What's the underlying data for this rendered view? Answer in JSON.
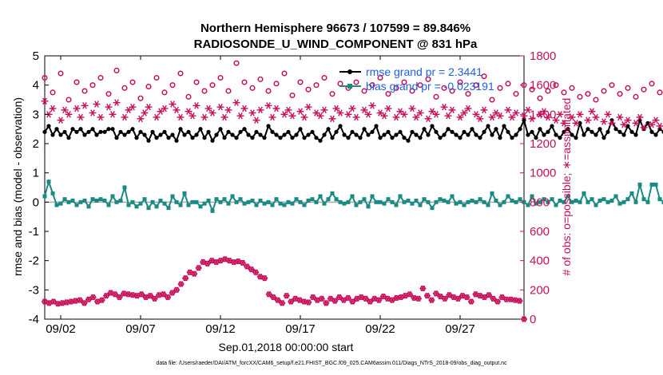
{
  "chart_data": {
    "type": "line",
    "title_line1": "Northern Hemisphere 96673 / 107599 = 89.846%",
    "title_line2": "RADIOSONDE_U_WIND_COMPONENT @ 831 hPa",
    "xlabel": "Sep.01,2018 00:00:00 start",
    "ylabel_left": "rmse and bias (model - observation)",
    "ylabel_right": "# of obs: o=possible; ∗=assimilated",
    "xlim": [
      0,
      30
    ],
    "ylim_left": [
      -4,
      5
    ],
    "ylim_right": [
      0,
      1800
    ],
    "x_ticks": [
      {
        "value": 1,
        "label": "09/02"
      },
      {
        "value": 6,
        "label": "09/07"
      },
      {
        "value": 11,
        "label": "09/12"
      },
      {
        "value": 16,
        "label": "09/17"
      },
      {
        "value": 21,
        "label": "09/22"
      },
      {
        "value": 26,
        "label": "09/27"
      }
    ],
    "y_ticks_left": [
      "5",
      "4",
      "3",
      "2",
      "1",
      "0",
      "-1",
      "-2",
      "-3",
      "-4"
    ],
    "y_ticks_right": [
      "1800",
      "1600",
      "1400",
      "1200",
      "1000",
      "800",
      "600",
      "400",
      "200",
      "0"
    ],
    "legend": [
      {
        "name": "rmse grand pr = 2.3441",
        "color": "#000000"
      },
      {
        "name": "bias grand pr = -0.023191",
        "color": "#1a8a82"
      }
    ],
    "footnote": "data file: /Users/raeder/DAI/ATM_forcXX/CAM6_setup/f.e21.FHIST_BGC.f09_025.CAM6assim.011/Diags_NTrS_2018-09/obs_diag_output.nc",
    "step_days": 0.25,
    "series": [
      {
        "name": "rmse",
        "axis": "left",
        "values": [
          2.4,
          2.6,
          2.3,
          2.5,
          2.3,
          2.4,
          2.2,
          2.5,
          2.4,
          2.5,
          2.3,
          2.4,
          2.5,
          2.3,
          2.4,
          2.4,
          2.5,
          2.5,
          2.2,
          2.4,
          2.3,
          2.4,
          2.5,
          2.2,
          2.4,
          2.3,
          2.1,
          2.4,
          2.2,
          2.3,
          2.4,
          2.2,
          2.3,
          2.1,
          2.5,
          2.3,
          2.4,
          2.2,
          2.3,
          2.5,
          2.2,
          2.4,
          2.1,
          2.3,
          2.5,
          2.2,
          2.4,
          2.3,
          2.2,
          2.4,
          2.5,
          2.3,
          2.2,
          2.4,
          2.3,
          2.2,
          2.6,
          2.4,
          2.3,
          2.2,
          2.3,
          2.4,
          2.2,
          2.3,
          2.5,
          2.2,
          2.3,
          2.4,
          2.2,
          2.1,
          2.3,
          2.5,
          2.2,
          2.4,
          2.6,
          2.3,
          2.2,
          2.4,
          2.3,
          2.2,
          2.5,
          2.3,
          2.4,
          2.6,
          2.2,
          2.3,
          2.4,
          2.2,
          2.3,
          2.4,
          2.2,
          2.1,
          2.4,
          2.3,
          2.2,
          2.5,
          2.3,
          2.6,
          2.4,
          2.2,
          2.3,
          2.5,
          2.4,
          2.3,
          2.2,
          2.4,
          2.3,
          2.5,
          2.3,
          2.2,
          2.4,
          2.6,
          2.3,
          2.5,
          2.2,
          2.6,
          2.4,
          2.2,
          2.3,
          2.5,
          2.8,
          2.3,
          2.4,
          2.2,
          2.5,
          2.3,
          2.4,
          2.6,
          2.3,
          2.2,
          2.4,
          2.5,
          2.3,
          2.2,
          2.7,
          2.3,
          2.5,
          2.4,
          2.3,
          2.5,
          2.2,
          2.4,
          2.8,
          2.5,
          2.4,
          2.3,
          2.6,
          2.4,
          2.3,
          2.8,
          2.5,
          2.7,
          2.4,
          2.3,
          2.5,
          2.4,
          2.3,
          2.6,
          2.5,
          2.4,
          2.3,
          2.5,
          2.6,
          2.4,
          2.8,
          2.5,
          2.3,
          2.4,
          2.3,
          2.6,
          2.2,
          2.4,
          2.3,
          2.5,
          2.4,
          2.3,
          2.4,
          2.2,
          2.3,
          2.4,
          2.5,
          2.4,
          2.3,
          2.2,
          2.5,
          2.4,
          2.3,
          2.7,
          2.5,
          2.4,
          2.3,
          2.2,
          2.4,
          2.6,
          2.4,
          2.3,
          2.5,
          2.7,
          2.4,
          2.6,
          2.5,
          2.6,
          2.5,
          2.4,
          2.6,
          2.5,
          2.5,
          2.6,
          2.5,
          2.4,
          2.6,
          2.3,
          2.4,
          2.7,
          2.6,
          2.8,
          2.9,
          2.8
        ]
      },
      {
        "name": "bias",
        "axis": "left",
        "values": [
          0.2,
          0.7,
          0.3,
          -0.1,
          -0.05,
          0.1,
          0.0,
          0.05,
          -0.1,
          0.0,
          0.05,
          -0.15,
          0.1,
          0.05,
          0.1,
          0.05,
          -0.1,
          0.2,
          0.0,
          0.05,
          0.5,
          -0.1,
          0.0,
          -0.15,
          -0.05,
          0.1,
          -0.2,
          0.0,
          -0.15,
          0.05,
          -0.05,
          -0.2,
          0.2,
          0.0,
          -0.1,
          0.3,
          -0.1,
          0.0,
          0.0,
          -0.15,
          -0.05,
          0.05,
          -0.3,
          0.1,
          0.0,
          0.1,
          -0.05,
          0.2,
          0.0,
          0.1,
          -0.05,
          0.0,
          0.05,
          -0.1,
          0.05,
          -0.05,
          0.0,
          -0.1,
          0.1,
          -0.05,
          -0.1,
          0.0,
          -0.05,
          0.1,
          0.0,
          -0.1,
          0.05,
          0.1,
          0.0,
          0.2,
          -0.05,
          0.1,
          0.3,
          0.1,
          0.0,
          -0.05,
          0.0,
          0.2,
          -0.1,
          0.0,
          0.1,
          -0.15,
          0.2,
          0.0,
          0.0,
          -0.05,
          0.1,
          0.0,
          -0.1,
          0.2,
          0.0,
          0.05,
          -0.05,
          0.05,
          -0.1,
          0.1,
          0.0,
          -0.2,
          0.0,
          0.1,
          0.05,
          0.0,
          0.2,
          -0.05,
          0.0,
          -0.1,
          0.0,
          0.05,
          0.0,
          0.1,
          0.0,
          -0.1,
          0.3,
          0.05,
          -0.1,
          0.0,
          0.2,
          0.05,
          0.0,
          0.1,
          0.0,
          -0.1,
          0.2,
          -0.05,
          0.0,
          0.1,
          0.0,
          0.1,
          -0.1,
          0.05,
          0.0,
          0.2,
          0.0,
          0.05,
          0.0,
          0.3,
          0.0,
          0.1,
          -0.1,
          0.05,
          0.1,
          0.0,
          0.05,
          0.2,
          -0.05,
          0.0,
          0.1,
          0.3,
          0.0,
          0.6,
          0.1,
          0.0,
          0.6,
          0.6,
          0.1,
          0.0,
          0.2,
          0.0,
          0.1,
          0.0,
          0.05,
          0.1,
          0.0,
          0.2,
          0.05,
          0.0,
          0.1,
          0.0,
          0.1,
          0.3,
          0.0,
          0.1,
          0.0,
          0.2,
          0.0,
          0.3,
          -0.05,
          0.2,
          0.0,
          0.1,
          0.0,
          -0.05,
          0.2,
          0.05,
          0.0,
          0.1,
          0.0,
          0.2,
          0.0,
          0.1,
          0.0,
          0.2,
          0.0,
          0.1,
          0.0,
          0.6,
          0.2,
          0.5,
          0.1,
          0.0,
          -0.1,
          0.0
        ]
      },
      {
        "name": "obs possible",
        "axis": "right",
        "marker": "circle",
        "values": [
          1650,
          null,
          1550,
          null,
          1680,
          null,
          1500,
          null,
          1620,
          null,
          1560,
          null,
          1600,
          null,
          1650,
          null,
          1540,
          null,
          1700,
          null,
          1580,
          null,
          1620,
          null,
          1510,
          null,
          1590,
          null,
          1650,
          null,
          1550,
          null,
          1600,
          null,
          1680,
          null,
          1520,
          null,
          1620,
          null,
          1560,
          null,
          1600,
          null,
          1650,
          null,
          1560,
          null,
          1750,
          null,
          1620,
          null,
          1580,
          null,
          1640,
          null,
          1560,
          null,
          1610,
          null,
          1680,
          null,
          1530,
          null,
          1620,
          null,
          1570,
          null,
          1600,
          null,
          1650,
          null,
          1540,
          null,
          1610,
          null,
          1580,
          null,
          1620,
          null,
          1560,
          null,
          1600,
          null,
          1650,
          null,
          1540,
          null,
          1580,
          null,
          1620,
          null,
          1560,
          null,
          1600,
          null,
          1640,
          null,
          1520,
          null,
          1580,
          null,
          1560,
          null,
          1620,
          null,
          1540,
          null,
          1600,
          null,
          1660,
          null,
          1500,
          null,
          1580,
          null,
          1610,
          null,
          1540,
          null,
          1600,
          null,
          1570,
          null,
          1510,
          null,
          1560,
          null,
          1600,
          null,
          1550,
          null,
          1580,
          null,
          1520,
          null,
          1540,
          null,
          1500,
          null,
          1560,
          null,
          1600,
          null,
          1540,
          null,
          1580,
          null,
          1520,
          null,
          1570,
          null,
          1610,
          null,
          1550,
          null,
          1500,
          null,
          1580
        ]
      },
      {
        "name": "obs assimilated",
        "axis": "right",
        "marker": "asterisk",
        "values": [
          1490,
          1400,
          1440,
          null,
          1360,
          1430,
          1400,
          null,
          1440,
          1380,
          1460,
          null,
          1410,
          1470,
          1380,
          null,
          1450,
          1400,
          1480,
          null,
          1380,
          1430,
          1450,
          null,
          1370,
          1410,
          1450,
          null,
          1380,
          1420,
          1440,
          null,
          1470,
          1430,
          1380,
          null,
          1420,
          1390,
          1460,
          null,
          1380,
          1440,
          1410,
          null,
          1450,
          1380,
          1430,
          null,
          1480,
          1390,
          1440,
          null,
          1410,
          1360,
          1430,
          null,
          1460,
          1380,
          1440,
          null,
          1400,
          1430,
          1390,
          null,
          1420,
          1380,
          1450,
          null,
          1410,
          1390,
          1430,
          null,
          1370,
          1440,
          1410,
          null,
          1400,
          1440,
          1380,
          null,
          1430,
          1400,
          1460,
          null,
          1410,
          1390,
          1440,
          null,
          1380,
          1420,
          1400,
          null,
          1440,
          1380,
          1410,
          null,
          1370,
          1420,
          1400,
          null,
          1450,
          1390,
          1430,
          null,
          1380,
          1410,
          1440,
          null,
          1400,
          1370,
          1430,
          null,
          1380,
          1410,
          1390,
          null,
          1430,
          1380,
          1410,
          null,
          1390,
          1430,
          1370,
          null,
          1400,
          1420,
          1380,
          null,
          1360,
          1400,
          1340,
          null,
          1380,
          1340,
          1400,
          null,
          1360,
          1420,
          1380,
          null,
          1350,
          1400,
          1340,
          null,
          1380,
          1330,
          1360,
          null,
          1340,
          1380,
          1310,
          null,
          1330,
          1360,
          1320,
          null,
          1380,
          1350,
          1310,
          null,
          1340,
          1320,
          1360,
          null,
          1330,
          1370,
          1310,
          null,
          1350,
          1320,
          1300,
          null,
          1340,
          1360,
          1320,
          null,
          1300,
          1340,
          1360
        ]
      },
      {
        "name": "obs possible low",
        "axis": "right",
        "marker": "circle",
        "values": [
          120,
          110,
          120,
          105,
          110,
          115,
          120,
          125,
          130,
          110,
          135,
          150,
          120,
          130,
          160,
          180,
          170,
          150,
          175,
          170,
          165,
          160,
          170,
          150,
          160,
          140,
          165,
          170,
          150,
          180,
          200,
          240,
          280,
          320,
          310,
          350,
          390,
          380,
          400,
          390,
          400,
          410,
          400,
          390,
          395,
          385,
          360,
          340,
          320,
          290,
          280,
          170,
          150,
          130,
          110,
          160,
          120,
          140,
          130,
          120,
          115,
          150,
          130,
          140,
          110,
          140,
          125,
          150,
          130,
          145,
          120,
          140,
          150,
          140,
          120,
          140,
          130,
          155,
          140,
          130,
          145,
          150,
          160,
          170,
          145,
          140,
          210,
          160,
          130,
          175,
          155,
          140,
          165,
          150,
          140,
          160,
          150,
          120,
          170,
          160,
          150,
          165,
          140,
          120,
          150,
          135,
          135,
          130,
          125,
          0,
          null,
          null,
          null,
          null,
          null,
          null,
          null,
          null,
          null,
          null,
          null,
          null,
          null,
          null,
          null,
          null,
          null,
          null,
          null,
          null,
          null,
          null,
          null,
          null,
          null,
          null,
          null,
          null,
          null,
          null,
          null,
          null,
          null,
          null,
          null,
          null,
          null,
          null,
          null,
          null,
          null,
          null,
          null,
          null,
          null,
          null,
          null,
          null,
          null,
          null,
          null,
          null,
          null,
          null,
          null,
          null,
          null,
          null,
          null,
          null,
          null,
          null,
          null,
          null,
          null,
          null,
          null,
          null,
          null,
          null,
          null,
          null,
          null,
          null,
          null,
          null,
          null,
          null,
          null,
          null,
          null,
          null,
          null,
          null,
          null
        ]
      }
    ]
  }
}
